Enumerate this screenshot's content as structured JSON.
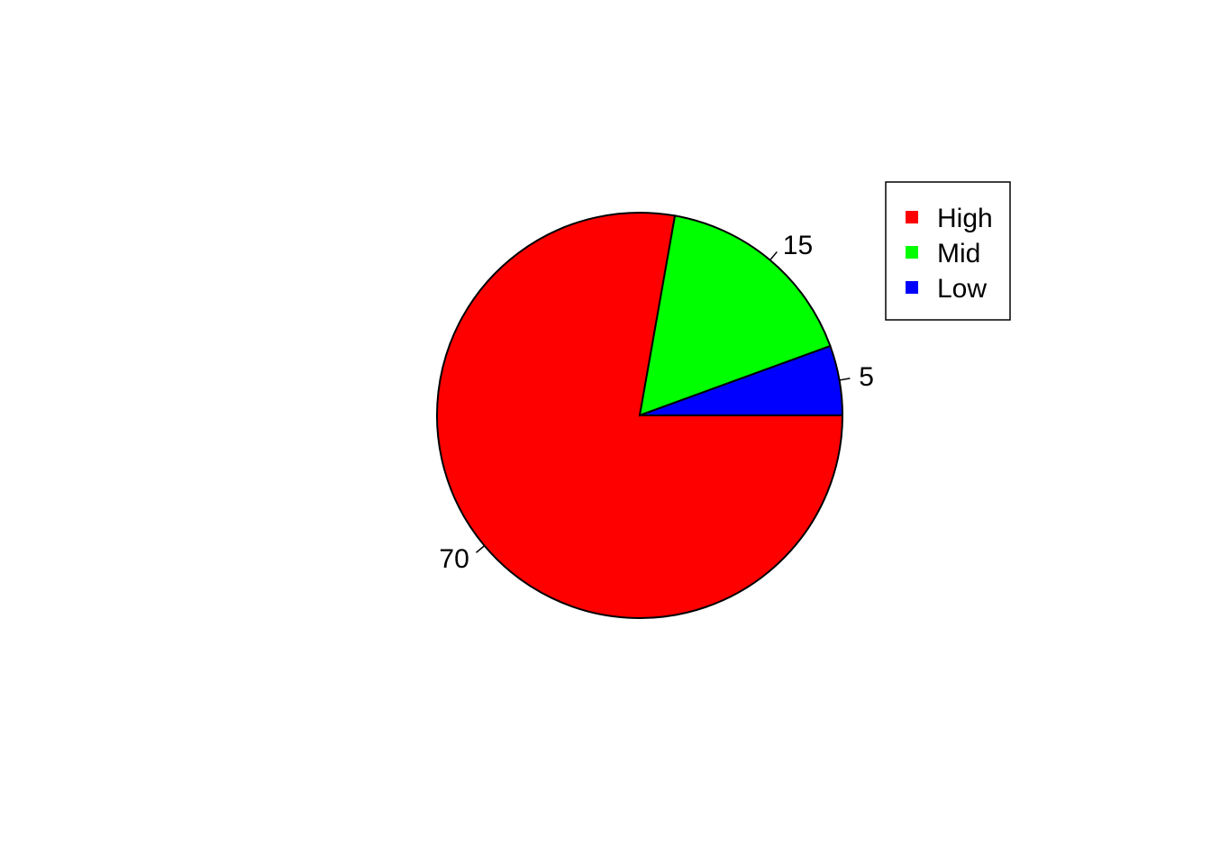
{
  "chart_data": {
    "type": "pie",
    "slices": [
      {
        "label": "70",
        "legend": "High",
        "value": 70,
        "color": "#FF0000"
      },
      {
        "label": "15",
        "legend": "Mid",
        "value": 15,
        "color": "#00FF00"
      },
      {
        "label": "5",
        "legend": "Low",
        "value": 5,
        "color": "#0000FF"
      }
    ],
    "direction": "clockwise",
    "start_angle_deg": 0,
    "legend_position": "top-right",
    "title": ""
  }
}
